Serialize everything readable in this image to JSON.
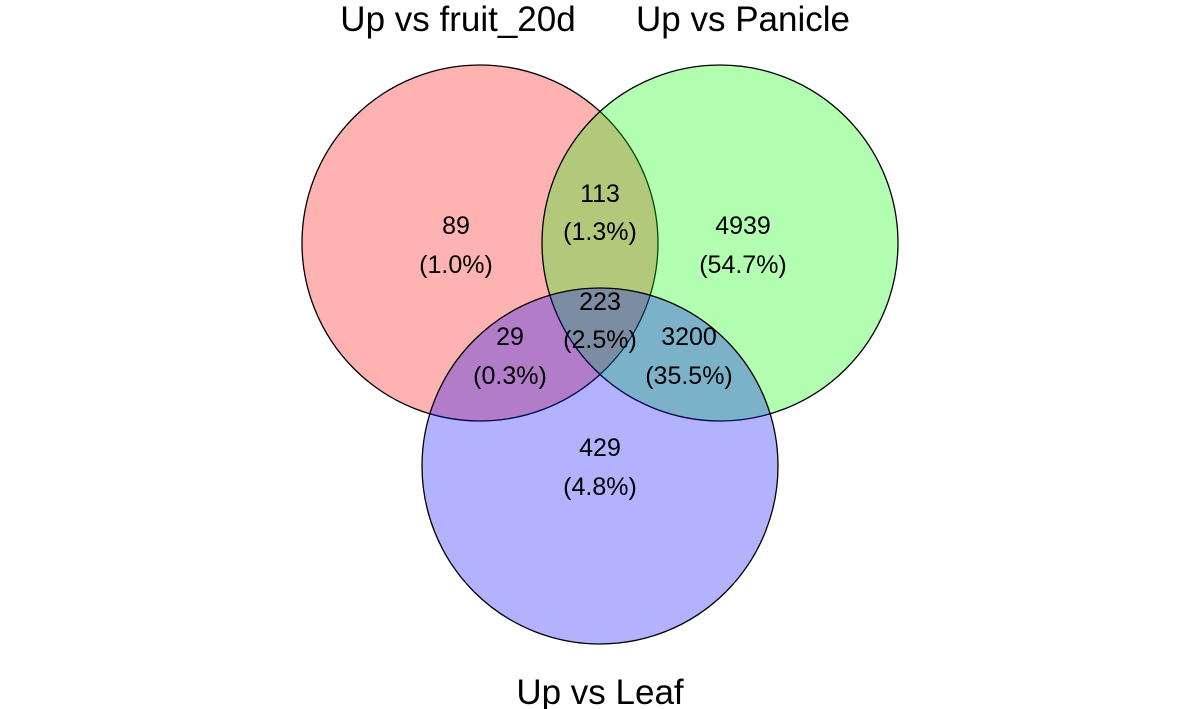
{
  "sets": {
    "a": {
      "title": "Up vs fruit_20d",
      "color": "#ff0000"
    },
    "b": {
      "title": "Up vs Panicle",
      "color": "#00ff00"
    },
    "c": {
      "title": "Up vs Leaf",
      "color": "#0000ff"
    }
  },
  "regions": {
    "a_only": {
      "count": "89",
      "pct": "(1.0%)"
    },
    "b_only": {
      "count": "4939",
      "pct": "(54.7%)"
    },
    "c_only": {
      "count": "429",
      "pct": "(4.8%)"
    },
    "ab": {
      "count": "113",
      "pct": "(1.3%)"
    },
    "ac": {
      "count": "29",
      "pct": "(0.3%)"
    },
    "bc": {
      "count": "3200",
      "pct": "(35.5%)"
    },
    "abc": {
      "count": "223",
      "pct": "(2.5%)"
    }
  }
}
